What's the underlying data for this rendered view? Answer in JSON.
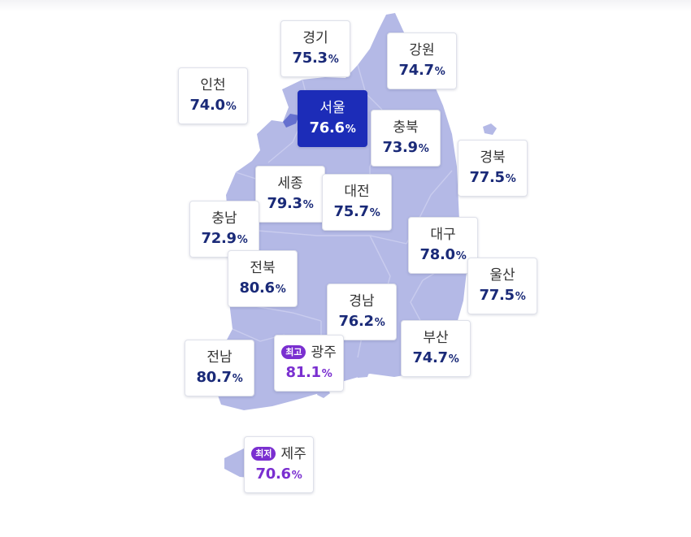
{
  "colors": {
    "land": "#b4b9e6",
    "border": "#c9ccee",
    "selected": "#1c2cb8",
    "accent": "#7a2fd0",
    "value": "#1a2a78"
  },
  "regions": {
    "gyeonggi": {
      "name": "경기",
      "value": "75.3",
      "unit": "%"
    },
    "gangwon": {
      "name": "강원",
      "value": "74.7",
      "unit": "%"
    },
    "incheon": {
      "name": "인천",
      "value": "74.0",
      "unit": "%"
    },
    "seoul": {
      "name": "서울",
      "value": "76.6",
      "unit": "%"
    },
    "chungbuk": {
      "name": "충북",
      "value": "73.9",
      "unit": "%"
    },
    "gyeongbuk": {
      "name": "경북",
      "value": "77.5",
      "unit": "%"
    },
    "sejong": {
      "name": "세종",
      "value": "79.3",
      "unit": "%"
    },
    "daejeon": {
      "name": "대전",
      "value": "75.7",
      "unit": "%"
    },
    "chungnam": {
      "name": "충남",
      "value": "72.9",
      "unit": "%"
    },
    "daegu": {
      "name": "대구",
      "value": "78.0",
      "unit": "%"
    },
    "jeonbuk": {
      "name": "전북",
      "value": "80.6",
      "unit": "%"
    },
    "ulsan": {
      "name": "울산",
      "value": "77.5",
      "unit": "%"
    },
    "gyeongnam": {
      "name": "경남",
      "value": "76.2",
      "unit": "%"
    },
    "busan": {
      "name": "부산",
      "value": "74.7",
      "unit": "%"
    },
    "jeonnam": {
      "name": "전남",
      "value": "80.7",
      "unit": "%"
    },
    "gwangju": {
      "name": "광주",
      "value": "81.1",
      "unit": "%",
      "badge": "최고"
    },
    "jeju": {
      "name": "제주",
      "value": "70.6",
      "unit": "%",
      "badge": "최저"
    }
  }
}
